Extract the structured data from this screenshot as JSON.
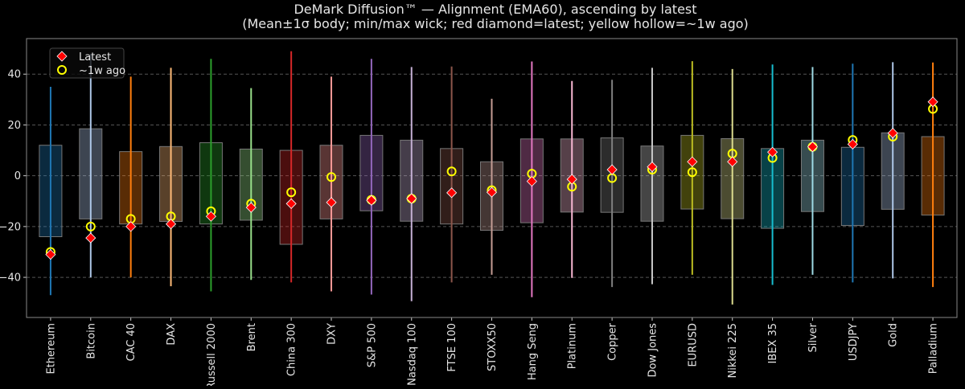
{
  "chart_data": {
    "type": "box",
    "title": "DeMark Diffusion™ — Alignment (EMA60), ascending by latest",
    "subtitle": "(Mean±1σ body; min/max wick; red diamond=latest; yellow hollow=~1w ago)",
    "xlabel": "",
    "ylabel": "",
    "ylim": [
      -55.8,
      54
    ],
    "yticks": [
      -40,
      -20,
      0,
      20,
      40
    ],
    "grid": "y dashed",
    "legend": {
      "position": "top-left",
      "entries": [
        "Latest",
        "~1w ago"
      ]
    },
    "marker_colors": {
      "latest": "#ff0000",
      "week_ago": "#ffff00"
    },
    "categories": [
      "Ethereum",
      "Bitcoin",
      "CAC 40",
      "DAX",
      "Russell 2000",
      "Brent",
      "China 300",
      "DXY",
      "S&P 500",
      "Nasdaq 100",
      "FTSE 100",
      "STOXX50",
      "Hang Seng",
      "Platinum",
      "Copper",
      "Dow Jones",
      "EURUSD",
      "Nikkei 225",
      "IBEX 35",
      "Silver",
      "USDJPY",
      "Gold",
      "Palladium"
    ],
    "colors": [
      "#1f77b4",
      "#aec7e8",
      "#ff7f0e",
      "#ffbb78",
      "#2ca02c",
      "#98df8a",
      "#d62728",
      "#ff9896",
      "#9467bd",
      "#c5b0d5",
      "#8c564b",
      "#c49c94",
      "#e377c2",
      "#f7b6d2",
      "#7f7f7f",
      "#c7c7c7",
      "#bcbd22",
      "#dbdb8d",
      "#17becf",
      "#9edae5",
      "#1f77b4",
      "#aec7e8",
      "#ff7f0e"
    ],
    "min": [
      -47,
      -40,
      -40,
      -43.5,
      -45.5,
      -41,
      -42,
      -45.5,
      -46.8,
      -49.4,
      -42,
      -39,
      -47.8,
      -40.2,
      -43.8,
      -42.7,
      -39,
      -50.7,
      -43,
      -39,
      -42,
      -40.4,
      -43.8
    ],
    "max": [
      35,
      48,
      39,
      42.5,
      46,
      34.5,
      49,
      39,
      46,
      42.8,
      43,
      30.3,
      45,
      37.3,
      37.8,
      42.5,
      45.1,
      42,
      43.8,
      42.8,
      44.1,
      44.7,
      44.6
    ],
    "mean_minus_sd": [
      -24,
      -17,
      -19,
      -18,
      -19,
      -17.5,
      -27,
      -17,
      -13.8,
      -17.9,
      -19,
      -21.5,
      -18.5,
      -14.3,
      -14.4,
      -17.9,
      -13.1,
      -16.9,
      -20.7,
      -14.1,
      -19.6,
      -13.2,
      -15.5
    ],
    "mean_plus_sd": [
      12,
      18.5,
      9.5,
      11.5,
      13,
      10.5,
      10,
      12,
      15.9,
      14,
      10.7,
      5.5,
      14.5,
      14.5,
      14.9,
      11.7,
      15.9,
      14.6,
      10.7,
      14,
      11.2,
      16.9,
      15.4
    ],
    "latest": [
      -31,
      -24.5,
      -20,
      -19,
      -16,
      -12.5,
      -11,
      -10.5,
      -9.7,
      -9,
      -6.7,
      -6.5,
      -2.2,
      -1.4,
      2.4,
      3.5,
      5.5,
      5.5,
      9.3,
      11.4,
      12.4,
      16.8,
      29.1
    ],
    "week_ago": [
      -30,
      -20,
      -17,
      -16,
      -14,
      -11,
      -6.5,
      -0.5,
      -9.5,
      -9,
      1.7,
      -5.7,
      0.8,
      -4.3,
      -0.9,
      2.4,
      1.4,
      8.7,
      7,
      11.4,
      14.1,
      15.4,
      26.3
    ]
  }
}
